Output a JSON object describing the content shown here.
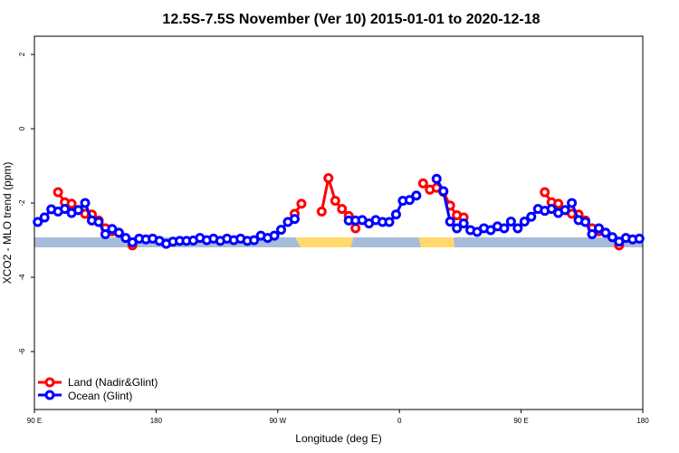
{
  "chart_data": {
    "type": "line",
    "title": "12.5S-7.5S November (Ver 10)   2015-01-01 to 2020-12-18",
    "xlabel": "Longitude (deg E)",
    "ylabel": "XCO2 - MLO trend (ppm)",
    "xlim": [
      90,
      540
    ],
    "ylim": [
      -7.56,
      2.49
    ],
    "x_ticks": [
      {
        "value": 90,
        "label": "90 E"
      },
      {
        "value": 180,
        "label": "180"
      },
      {
        "value": 270,
        "label": "90 W"
      },
      {
        "value": 360,
        "label": "0"
      },
      {
        "value": 450,
        "label": "90 E"
      },
      {
        "value": 540,
        "label": "180"
      }
    ],
    "y_ticks": [
      {
        "value": 2,
        "label": "2"
      },
      {
        "value": 0,
        "label": "0"
      },
      {
        "value": -2,
        "label": "-2"
      },
      {
        "value": -4,
        "label": "-4"
      },
      {
        "value": -6,
        "label": "-6"
      }
    ],
    "grid": false,
    "legend_position": "bottom-left",
    "colors": {
      "land": "#ff0000",
      "ocean": "#0000ff",
      "ocean_band": "#a7bcd9",
      "land_band": "#ffd86e"
    },
    "series": [
      {
        "name": "Land (Nadir&Glint)",
        "color": "#ff0000",
        "segments": [
          [
            [
              107.5,
              -1.71
            ],
            [
              112.5,
              -1.98
            ],
            [
              117.5,
              -2.02
            ],
            [
              122.5,
              -2.19
            ],
            [
              127.5,
              -2.29
            ],
            [
              132.5,
              -2.31
            ],
            [
              137.5,
              -2.47
            ],
            [
              142.5,
              -2.68
            ],
            [
              147.5,
              -2.76
            ],
            [
              152.5,
              -2.8
            ],
            [
              162.5,
              -3.14
            ]
          ],
          [
            [
              282.5,
              -2.29
            ],
            [
              287.5,
              -2.02
            ]
          ],
          [
            [
              302.5,
              -2.23
            ],
            [
              307.5,
              -1.33
            ],
            [
              312.5,
              -1.94
            ],
            [
              317.5,
              -2.16
            ],
            [
              322.5,
              -2.35
            ],
            [
              327.5,
              -2.68
            ]
          ],
          [
            [
              377.5,
              -1.47
            ],
            [
              382.5,
              -1.64
            ],
            [
              387.5,
              -1.59
            ],
            [
              392.5,
              -1.7
            ],
            [
              397.5,
              -2.07
            ],
            [
              402.5,
              -2.33
            ],
            [
              407.5,
              -2.39
            ]
          ],
          [
            [
              467.5,
              -1.71
            ],
            [
              472.5,
              -1.98
            ],
            [
              477.5,
              -2.02
            ],
            [
              482.5,
              -2.19
            ],
            [
              487.5,
              -2.29
            ],
            [
              492.5,
              -2.31
            ],
            [
              497.5,
              -2.47
            ],
            [
              502.5,
              -2.68
            ],
            [
              507.5,
              -2.76
            ],
            [
              512.5,
              -2.8
            ],
            [
              522.5,
              -3.14
            ]
          ]
        ]
      },
      {
        "name": "Ocean (Glint)",
        "color": "#0000ff",
        "segments": [
          [
            [
              92.5,
              -2.51
            ],
            [
              97.5,
              -2.39
            ],
            [
              102.5,
              -2.17
            ],
            [
              107.5,
              -2.23
            ],
            [
              112.5,
              -2.16
            ],
            [
              117.5,
              -2.27
            ],
            [
              122.5,
              -2.19
            ],
            [
              127.5,
              -2.0
            ],
            [
              132.5,
              -2.47
            ],
            [
              137.5,
              -2.51
            ],
            [
              142.5,
              -2.84
            ],
            [
              147.5,
              -2.7
            ],
            [
              152.5,
              -2.8
            ],
            [
              157.5,
              -2.94
            ],
            [
              162.5,
              -3.06
            ],
            [
              167.5,
              -2.96
            ],
            [
              172.5,
              -2.98
            ],
            [
              177.5,
              -2.96
            ],
            [
              182.5,
              -3.02
            ],
            [
              187.5,
              -3.1
            ],
            [
              192.5,
              -3.04
            ],
            [
              197.5,
              -3.02
            ],
            [
              202.5,
              -3.02
            ],
            [
              207.5,
              -3.01
            ],
            [
              212.5,
              -2.94
            ],
            [
              217.5,
              -3.0
            ],
            [
              222.5,
              -2.96
            ],
            [
              227.5,
              -3.02
            ],
            [
              232.5,
              -2.96
            ],
            [
              237.5,
              -3.0
            ],
            [
              242.5,
              -2.96
            ],
            [
              247.5,
              -3.02
            ],
            [
              252.5,
              -3.0
            ],
            [
              257.5,
              -2.88
            ],
            [
              262.5,
              -2.94
            ],
            [
              267.5,
              -2.88
            ],
            [
              272.5,
              -2.72
            ],
            [
              277.5,
              -2.51
            ],
            [
              282.5,
              -2.43
            ]
          ],
          [
            [
              322.5,
              -2.47
            ],
            [
              327.5,
              -2.47
            ],
            [
              332.5,
              -2.46
            ],
            [
              337.5,
              -2.55
            ],
            [
              342.5,
              -2.46
            ],
            [
              347.5,
              -2.51
            ],
            [
              352.5,
              -2.51
            ],
            [
              357.5,
              -2.31
            ],
            [
              362.5,
              -1.94
            ],
            [
              367.5,
              -1.92
            ],
            [
              372.5,
              -1.8
            ]
          ],
          [
            [
              387.5,
              -1.35
            ],
            [
              392.5,
              -1.68
            ],
            [
              397.5,
              -2.5
            ],
            [
              402.5,
              -2.68
            ],
            [
              407.5,
              -2.55
            ],
            [
              412.5,
              -2.73
            ],
            [
              417.5,
              -2.78
            ],
            [
              422.5,
              -2.68
            ],
            [
              427.5,
              -2.73
            ],
            [
              432.5,
              -2.63
            ],
            [
              437.5,
              -2.68
            ],
            [
              442.5,
              -2.5
            ],
            [
              447.5,
              -2.68
            ],
            [
              452.5,
              -2.5
            ],
            [
              457.5,
              -2.37
            ],
            [
              462.5,
              -2.16
            ],
            [
              467.5,
              -2.21
            ],
            [
              472.5,
              -2.16
            ],
            [
              477.5,
              -2.27
            ],
            [
              482.5,
              -2.19
            ],
            [
              487.5,
              -2.0
            ],
            [
              492.5,
              -2.46
            ],
            [
              497.5,
              -2.51
            ],
            [
              502.5,
              -2.84
            ],
            [
              507.5,
              -2.68
            ],
            [
              512.5,
              -2.8
            ],
            [
              517.5,
              -2.92
            ],
            [
              522.5,
              -3.04
            ],
            [
              527.5,
              -2.94
            ],
            [
              532.5,
              -2.98
            ],
            [
              537.5,
              -2.96
            ]
          ]
        ]
      }
    ]
  }
}
